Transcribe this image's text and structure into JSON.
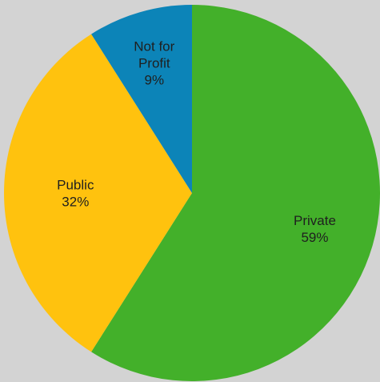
{
  "chart_data": {
    "type": "pie",
    "title": "",
    "slices": [
      {
        "label": "Private",
        "label_lines": [
          "Private"
        ],
        "value": 59,
        "display": "59%",
        "color": "#43b02a"
      },
      {
        "label": "Public",
        "label_lines": [
          "Public"
        ],
        "value": 32,
        "display": "32%",
        "color": "#ffc20e"
      },
      {
        "label": "Not for Profit",
        "label_lines": [
          "Not for",
          "Profit"
        ],
        "value": 9,
        "display": "9%",
        "color": "#0c84b8"
      }
    ],
    "start_angle_deg": 0,
    "direction": "clockwise",
    "legend": "none"
  }
}
